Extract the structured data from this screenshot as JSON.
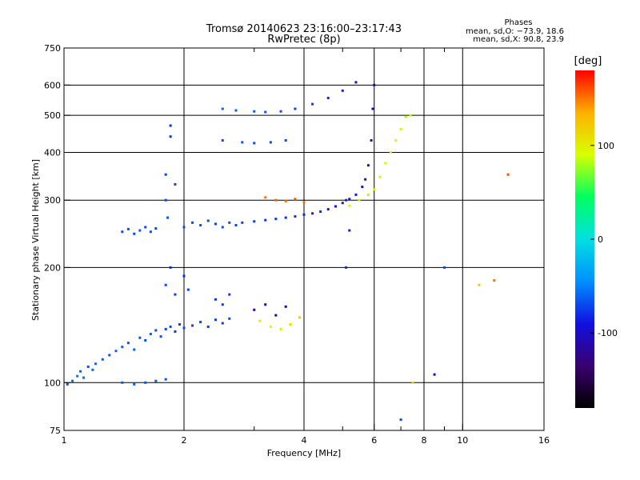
{
  "header": {
    "title": "Tromsø 20140623 23:16:00–23:17:43",
    "subtitle": "RwPretec (8p)"
  },
  "stats": {
    "heading": "Phases",
    "line_o": "mean, sd,O: −73.9, 18.6",
    "line_x": "mean, sd,X:  90.8, 23.9"
  },
  "chart_data": {
    "type": "scatter",
    "title": "Tromsø 20140623 23:16:00–23:17:43",
    "subtitle": "RwPretec (8p)",
    "xlabel": "Frequency [MHz]",
    "ylabel": "Stationary phase Virtual Height [km]",
    "x_scale": "log",
    "y_scale": "log",
    "xlim": [
      1,
      16
    ],
    "ylim": [
      75,
      750
    ],
    "x_ticks": [
      1,
      2,
      4,
      6,
      8,
      10,
      16
    ],
    "x_tick_labels": [
      "1",
      "2",
      "4",
      "6",
      "8",
      "10",
      "16"
    ],
    "x_minor_ticks": [
      3,
      5,
      7,
      9
    ],
    "y_ticks": [
      75,
      100,
      200,
      300,
      400,
      500,
      600,
      750
    ],
    "y_tick_labels": [
      "75",
      "100",
      "200",
      "300",
      "400",
      "500",
      "600",
      "750"
    ],
    "grid": true,
    "colorbar": {
      "label": "[deg]",
      "range": [
        -180,
        180
      ],
      "ticks": [
        100,
        0,
        -100
      ],
      "tick_labels": [
        "100",
        "0",
        "-100"
      ],
      "colormap": "rainbow"
    },
    "color_scale_stops": [
      "#000000",
      "#3a0070",
      "#1010e0",
      "#0090ff",
      "#00e0e0",
      "#00ff60",
      "#d8ff00",
      "#ffb000",
      "#ff0000"
    ],
    "series": [
      {
        "points": [
          [
            1.02,
            99,
            -70
          ],
          [
            1.05,
            101,
            -60
          ],
          [
            1.08,
            104,
            -55
          ],
          [
            1.1,
            107,
            -62
          ],
          [
            1.12,
            103,
            -58
          ],
          [
            1.15,
            110,
            -65
          ],
          [
            1.18,
            108,
            -60
          ],
          [
            1.2,
            112,
            -57
          ],
          [
            1.25,
            115,
            -64
          ],
          [
            1.3,
            118,
            -66
          ],
          [
            1.35,
            121,
            -60
          ],
          [
            1.4,
            124,
            -63
          ],
          [
            1.45,
            127,
            -68
          ],
          [
            1.5,
            122,
            -62
          ],
          [
            1.55,
            131,
            -66
          ],
          [
            1.6,
            129,
            -70
          ],
          [
            1.65,
            134,
            -64
          ],
          [
            1.7,
            137,
            -69
          ],
          [
            1.75,
            132,
            -66
          ],
          [
            1.8,
            138,
            -72
          ],
          [
            1.85,
            140,
            -70
          ],
          [
            1.9,
            136,
            -75
          ],
          [
            1.95,
            142,
            -72
          ],
          [
            2.0,
            139,
            -70
          ],
          [
            2.1,
            141,
            -74
          ],
          [
            2.2,
            144,
            -72
          ],
          [
            2.3,
            140,
            -75
          ],
          [
            2.4,
            146,
            -73
          ],
          [
            2.5,
            143,
            -76
          ],
          [
            2.6,
            147,
            -70
          ],
          [
            1.4,
            100,
            -65
          ],
          [
            1.5,
            99,
            -62
          ],
          [
            1.6,
            100,
            -68
          ],
          [
            1.7,
            101,
            -64
          ],
          [
            1.8,
            102,
            -66
          ],
          [
            1.8,
            180,
            -70
          ],
          [
            1.85,
            200,
            -80
          ],
          [
            1.9,
            170,
            -75
          ],
          [
            2.0,
            190,
            -80
          ],
          [
            2.05,
            175,
            -72
          ],
          [
            2.4,
            165,
            -78
          ],
          [
            2.5,
            160,
            -74
          ],
          [
            2.6,
            170,
            -76
          ],
          [
            1.4,
            248,
            -70
          ],
          [
            1.45,
            252,
            -68
          ],
          [
            1.5,
            245,
            -72
          ],
          [
            1.55,
            250,
            -66
          ],
          [
            1.6,
            255,
            -70
          ],
          [
            1.65,
            248,
            -68
          ],
          [
            1.7,
            253,
            -72
          ],
          [
            1.8,
            300,
            -70
          ],
          [
            1.8,
            350,
            -72
          ],
          [
            1.82,
            270,
            -68
          ],
          [
            1.85,
            440,
            -78
          ],
          [
            1.85,
            470,
            -80
          ],
          [
            1.9,
            330,
            -74
          ],
          [
            2.0,
            255,
            -70
          ],
          [
            2.1,
            262,
            -72
          ],
          [
            2.2,
            258,
            -68
          ],
          [
            2.3,
            265,
            -70
          ],
          [
            2.4,
            260,
            -72
          ],
          [
            2.5,
            255,
            -68
          ],
          [
            2.6,
            262,
            -70
          ],
          [
            2.7,
            258,
            -72
          ],
          [
            2.8,
            262,
            -74
          ],
          [
            3.0,
            264,
            -76
          ],
          [
            3.2,
            266,
            -78
          ],
          [
            3.4,
            268,
            -76
          ],
          [
            3.6,
            270,
            -80
          ],
          [
            3.8,
            272,
            -78
          ],
          [
            4.0,
            275,
            -80
          ],
          [
            4.2,
            277,
            -84
          ],
          [
            4.4,
            280,
            -82
          ],
          [
            4.6,
            284,
            -86
          ],
          [
            4.8,
            289,
            -88
          ],
          [
            5.0,
            295,
            -86
          ],
          [
            5.2,
            302,
            -90
          ],
          [
            5.4,
            310,
            -88
          ],
          [
            5.6,
            325,
            -94
          ],
          [
            5.7,
            340,
            -96
          ],
          [
            5.8,
            370,
            -100
          ],
          [
            5.9,
            430,
            -104
          ],
          [
            5.95,
            520,
            -110
          ],
          [
            6.0,
            600,
            -114
          ],
          [
            3.2,
            305,
            150
          ],
          [
            3.4,
            300,
            155
          ],
          [
            3.6,
            298,
            150
          ],
          [
            3.8,
            302,
            160
          ],
          [
            4.0,
            296,
            150
          ],
          [
            3.1,
            145,
            100
          ],
          [
            3.3,
            140,
            95
          ],
          [
            3.5,
            138,
            100
          ],
          [
            3.7,
            142,
            110
          ],
          [
            3.9,
            148,
            120
          ],
          [
            3.0,
            155,
            -120
          ],
          [
            3.2,
            160,
            -110
          ],
          [
            3.4,
            150,
            -115
          ],
          [
            3.6,
            158,
            -120
          ],
          [
            5.2,
            290,
            95
          ],
          [
            5.5,
            300,
            100
          ],
          [
            5.8,
            310,
            105
          ],
          [
            6.0,
            320,
            95
          ],
          [
            6.2,
            345,
            100
          ],
          [
            6.4,
            375,
            90
          ],
          [
            6.6,
            400,
            92
          ],
          [
            6.8,
            430,
            85
          ],
          [
            7.0,
            460,
            88
          ],
          [
            7.2,
            495,
            80
          ],
          [
            7.4,
            500,
            85
          ],
          [
            2.5,
            520,
            -60
          ],
          [
            2.7,
            515,
            -62
          ],
          [
            3.0,
            512,
            -64
          ],
          [
            3.2,
            510,
            -66
          ],
          [
            3.5,
            512,
            -68
          ],
          [
            3.8,
            520,
            -72
          ],
          [
            4.2,
            535,
            -76
          ],
          [
            4.6,
            555,
            -80
          ],
          [
            5.0,
            580,
            -84
          ],
          [
            5.4,
            610,
            -90
          ],
          [
            2.5,
            430,
            -68
          ],
          [
            2.8,
            425,
            -66
          ],
          [
            3.0,
            423,
            -70
          ],
          [
            3.3,
            425,
            -72
          ],
          [
            3.6,
            430,
            -70
          ],
          [
            5.1,
            200,
            -80
          ],
          [
            5.2,
            250,
            -85
          ],
          [
            5.1,
            300,
            -82
          ],
          [
            7.0,
            80,
            -70
          ],
          [
            7.5,
            100,
            110
          ],
          [
            8.5,
            105,
            -110
          ],
          [
            9.0,
            200,
            -70
          ],
          [
            12.0,
            185,
            150
          ],
          [
            11.0,
            180,
            120
          ],
          [
            13.0,
            350,
            160
          ]
        ]
      }
    ]
  }
}
